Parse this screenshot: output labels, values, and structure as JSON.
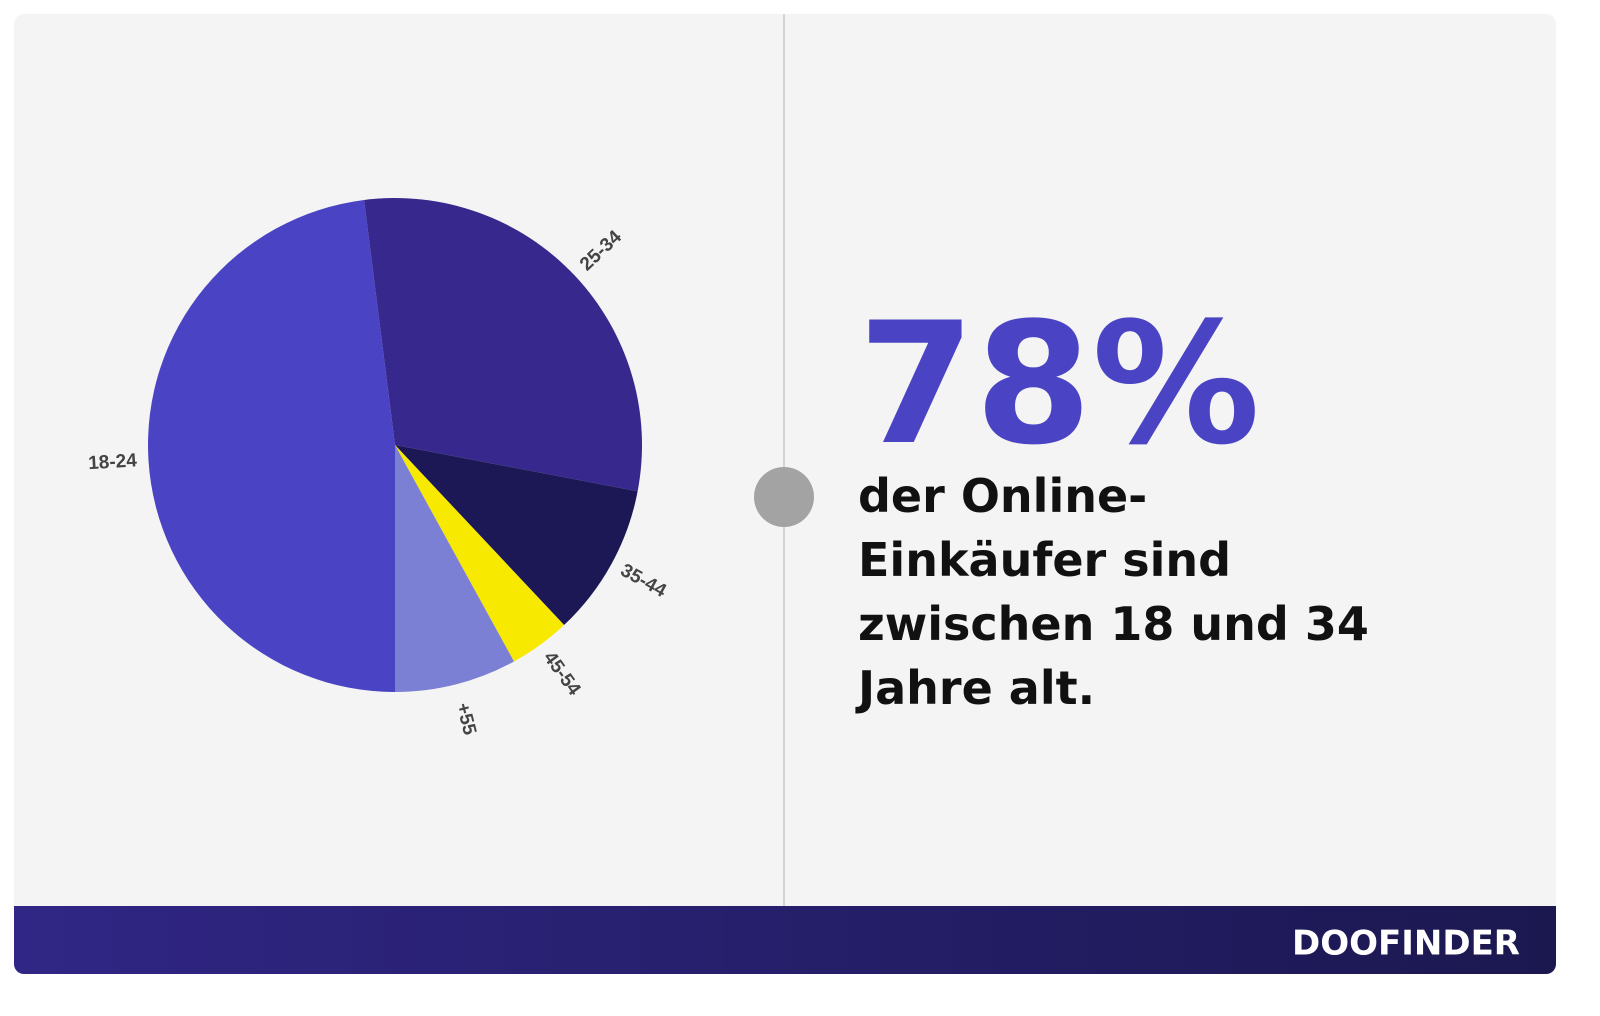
{
  "chart_data": {
    "type": "pie",
    "categories": [
      "18-24",
      "25-34",
      "35-44",
      "45-54",
      "+55"
    ],
    "values": [
      48,
      30,
      10,
      4,
      8
    ],
    "colors": [
      "#4a44c4",
      "#37288e",
      "#1c1856",
      "#f7e900",
      "#7b80d4"
    ]
  },
  "headline": "78%",
  "text_lines": [
    "der Online-",
    "Einkäufer sind",
    "zwischen 18 und 34",
    "Jahre alt."
  ],
  "logo": "DOOFINDER"
}
